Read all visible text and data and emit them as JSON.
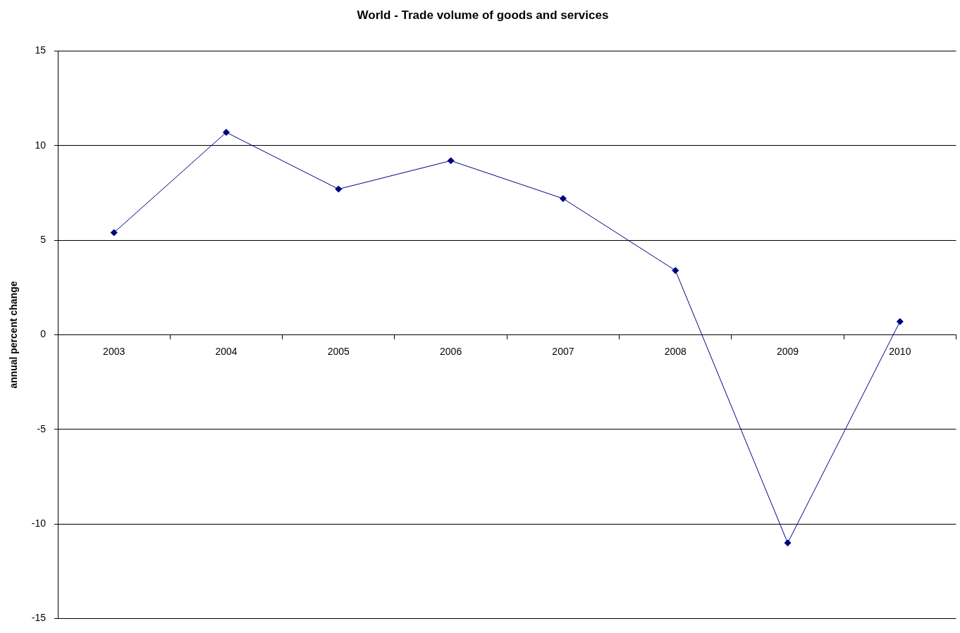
{
  "chart_data": {
    "type": "line",
    "title": "World - Trade volume of goods and services",
    "ylabel": "annual percent change",
    "categories": [
      "2003",
      "2004",
      "2005",
      "2006",
      "2007",
      "2008",
      "2009",
      "2010"
    ],
    "series": [
      {
        "color": "#000080",
        "values": [
          5.4,
          10.7,
          7.7,
          9.2,
          7.2,
          3.4,
          -11.0,
          0.7
        ]
      }
    ],
    "ylim": [
      -15,
      15
    ],
    "yticks": [
      -15,
      -10,
      -5,
      0,
      5,
      10,
      15
    ],
    "grid": "y",
    "legend": false,
    "marker": "diamond",
    "line_style": "solid"
  }
}
